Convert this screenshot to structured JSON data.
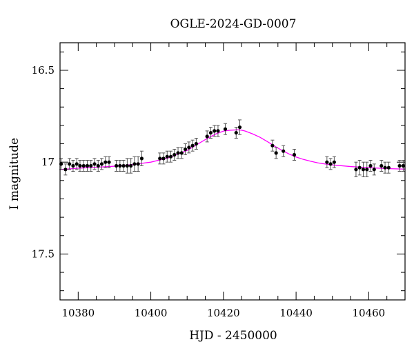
{
  "chart_data": {
    "type": "scatter",
    "title": "OGLE-2024-GD-0007",
    "xlabel": "HJD - 2450000",
    "ylabel": "I magnitude",
    "xlim": [
      10375,
      10470
    ],
    "ylim": [
      17.75,
      16.35
    ],
    "y_inverted": true,
    "x_ticks": [
      10380,
      10400,
      10420,
      10440,
      10460
    ],
    "x_tick_labels": [
      "10380",
      "10400",
      "10420",
      "10440",
      "10460"
    ],
    "y_ticks": [
      16.5,
      17,
      17.5
    ],
    "y_tick_labels": [
      "16.5",
      "17",
      "17.5"
    ],
    "grid": false,
    "colors": {
      "points": "#000000",
      "errorbars": "#555555",
      "model": "#ff00ff"
    },
    "series": [
      {
        "kind": "observations",
        "x": [
          10375.3,
          10376.5,
          10377.6,
          10378.6,
          10379.6,
          10380.5,
          10381.5,
          10382.5,
          10383.5,
          10384.5,
          10385.5,
          10386.5,
          10387.5,
          10388.5,
          10390.5,
          10391.5,
          10392.5,
          10393.5,
          10394.5,
          10395.5,
          10396.5,
          10397.5,
          10402.5,
          10403.5,
          10404.5,
          10405.5,
          10406.5,
          10407.5,
          10408.5,
          10409.5,
          10410.5,
          10411.5,
          10412.5,
          10415.5,
          10416.5,
          10417.5,
          10418.5,
          10420.5,
          10423.5,
          10424.5,
          10433.5,
          10434.5,
          10436.5,
          10439.5,
          10448.5,
          10449.5,
          10450.5,
          10456.5,
          10457.5,
          10458.5,
          10459.5,
          10460.5,
          10461.5,
          10463.5,
          10464.5,
          10465.5,
          10468.5,
          10469.5
        ],
        "y": [
          17.01,
          17.04,
          17.01,
          17.02,
          17.01,
          17.02,
          17.02,
          17.02,
          17.02,
          17.01,
          17.02,
          17.01,
          17.0,
          17.0,
          17.02,
          17.02,
          17.02,
          17.02,
          17.02,
          17.01,
          17.01,
          16.98,
          16.98,
          16.98,
          16.97,
          16.97,
          16.96,
          16.95,
          16.95,
          16.93,
          16.92,
          16.91,
          16.9,
          16.86,
          16.84,
          16.83,
          16.83,
          16.82,
          16.84,
          16.81,
          16.91,
          16.95,
          16.94,
          16.96,
          17.0,
          17.01,
          17.0,
          17.04,
          17.03,
          17.04,
          17.04,
          17.02,
          17.04,
          17.02,
          17.03,
          17.03,
          17.02,
          17.02
        ],
        "err": [
          0.03,
          0.03,
          0.03,
          0.03,
          0.03,
          0.03,
          0.03,
          0.03,
          0.03,
          0.03,
          0.03,
          0.03,
          0.03,
          0.03,
          0.03,
          0.03,
          0.03,
          0.04,
          0.04,
          0.04,
          0.04,
          0.04,
          0.03,
          0.03,
          0.03,
          0.03,
          0.03,
          0.03,
          0.03,
          0.03,
          0.03,
          0.03,
          0.03,
          0.03,
          0.03,
          0.03,
          0.03,
          0.03,
          0.03,
          0.04,
          0.03,
          0.03,
          0.03,
          0.03,
          0.03,
          0.03,
          0.03,
          0.04,
          0.04,
          0.04,
          0.04,
          0.03,
          0.03,
          0.03,
          0.03,
          0.03,
          0.03,
          0.03
        ]
      },
      {
        "kind": "model",
        "x": [
          10375,
          10380,
          10385,
          10390,
          10395,
          10400,
          10405,
          10410,
          10412,
          10414,
          10416,
          10418,
          10420,
          10422,
          10424,
          10425,
          10426,
          10428,
          10430,
          10432,
          10434,
          10436,
          10438,
          10440,
          10442,
          10444,
          10446,
          10448,
          10450,
          10455,
          10460,
          10465,
          10470
        ],
        "y": [
          17.04,
          17.033,
          17.028,
          17.022,
          17.013,
          17.0,
          16.976,
          16.936,
          16.913,
          16.889,
          16.866,
          16.846,
          16.831,
          16.826,
          16.824,
          16.826,
          16.831,
          16.846,
          16.864,
          16.887,
          16.912,
          16.935,
          16.955,
          16.972,
          16.985,
          16.995,
          17.004,
          17.01,
          17.015,
          17.024,
          17.03,
          17.035,
          17.038
        ]
      }
    ]
  }
}
